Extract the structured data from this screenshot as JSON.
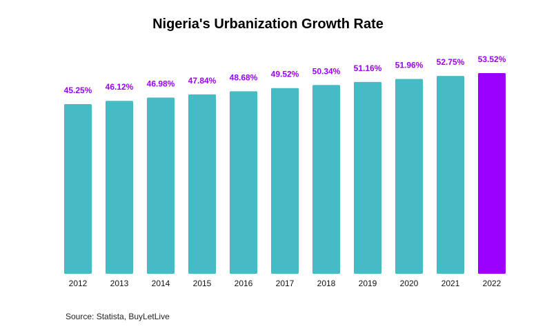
{
  "chart_data": {
    "type": "bar",
    "title": "Nigeria's Urbanization Growth Rate",
    "categories": [
      "2012",
      "2013",
      "2014",
      "2015",
      "2016",
      "2017",
      "2018",
      "2019",
      "2020",
      "2021",
      "2022"
    ],
    "values": [
      45.25,
      46.12,
      46.98,
      47.84,
      48.68,
      49.52,
      50.34,
      51.16,
      51.96,
      52.75,
      53.52
    ],
    "value_labels": [
      "45.25%",
      "46.12%",
      "46.98%",
      "47.84%",
      "48.68%",
      "49.52%",
      "50.34%",
      "51.16%",
      "51.96%",
      "52.75%",
      "53.52%"
    ],
    "xlabel": "",
    "ylabel": "",
    "ylim": [
      0,
      53.52
    ],
    "grid": false,
    "highlight_index": 10,
    "colors": {
      "bar": "#47BBC5",
      "highlight": "#9900FF",
      "label": "#9900FF"
    }
  },
  "source": "Source: Statista, BuyLetLive"
}
